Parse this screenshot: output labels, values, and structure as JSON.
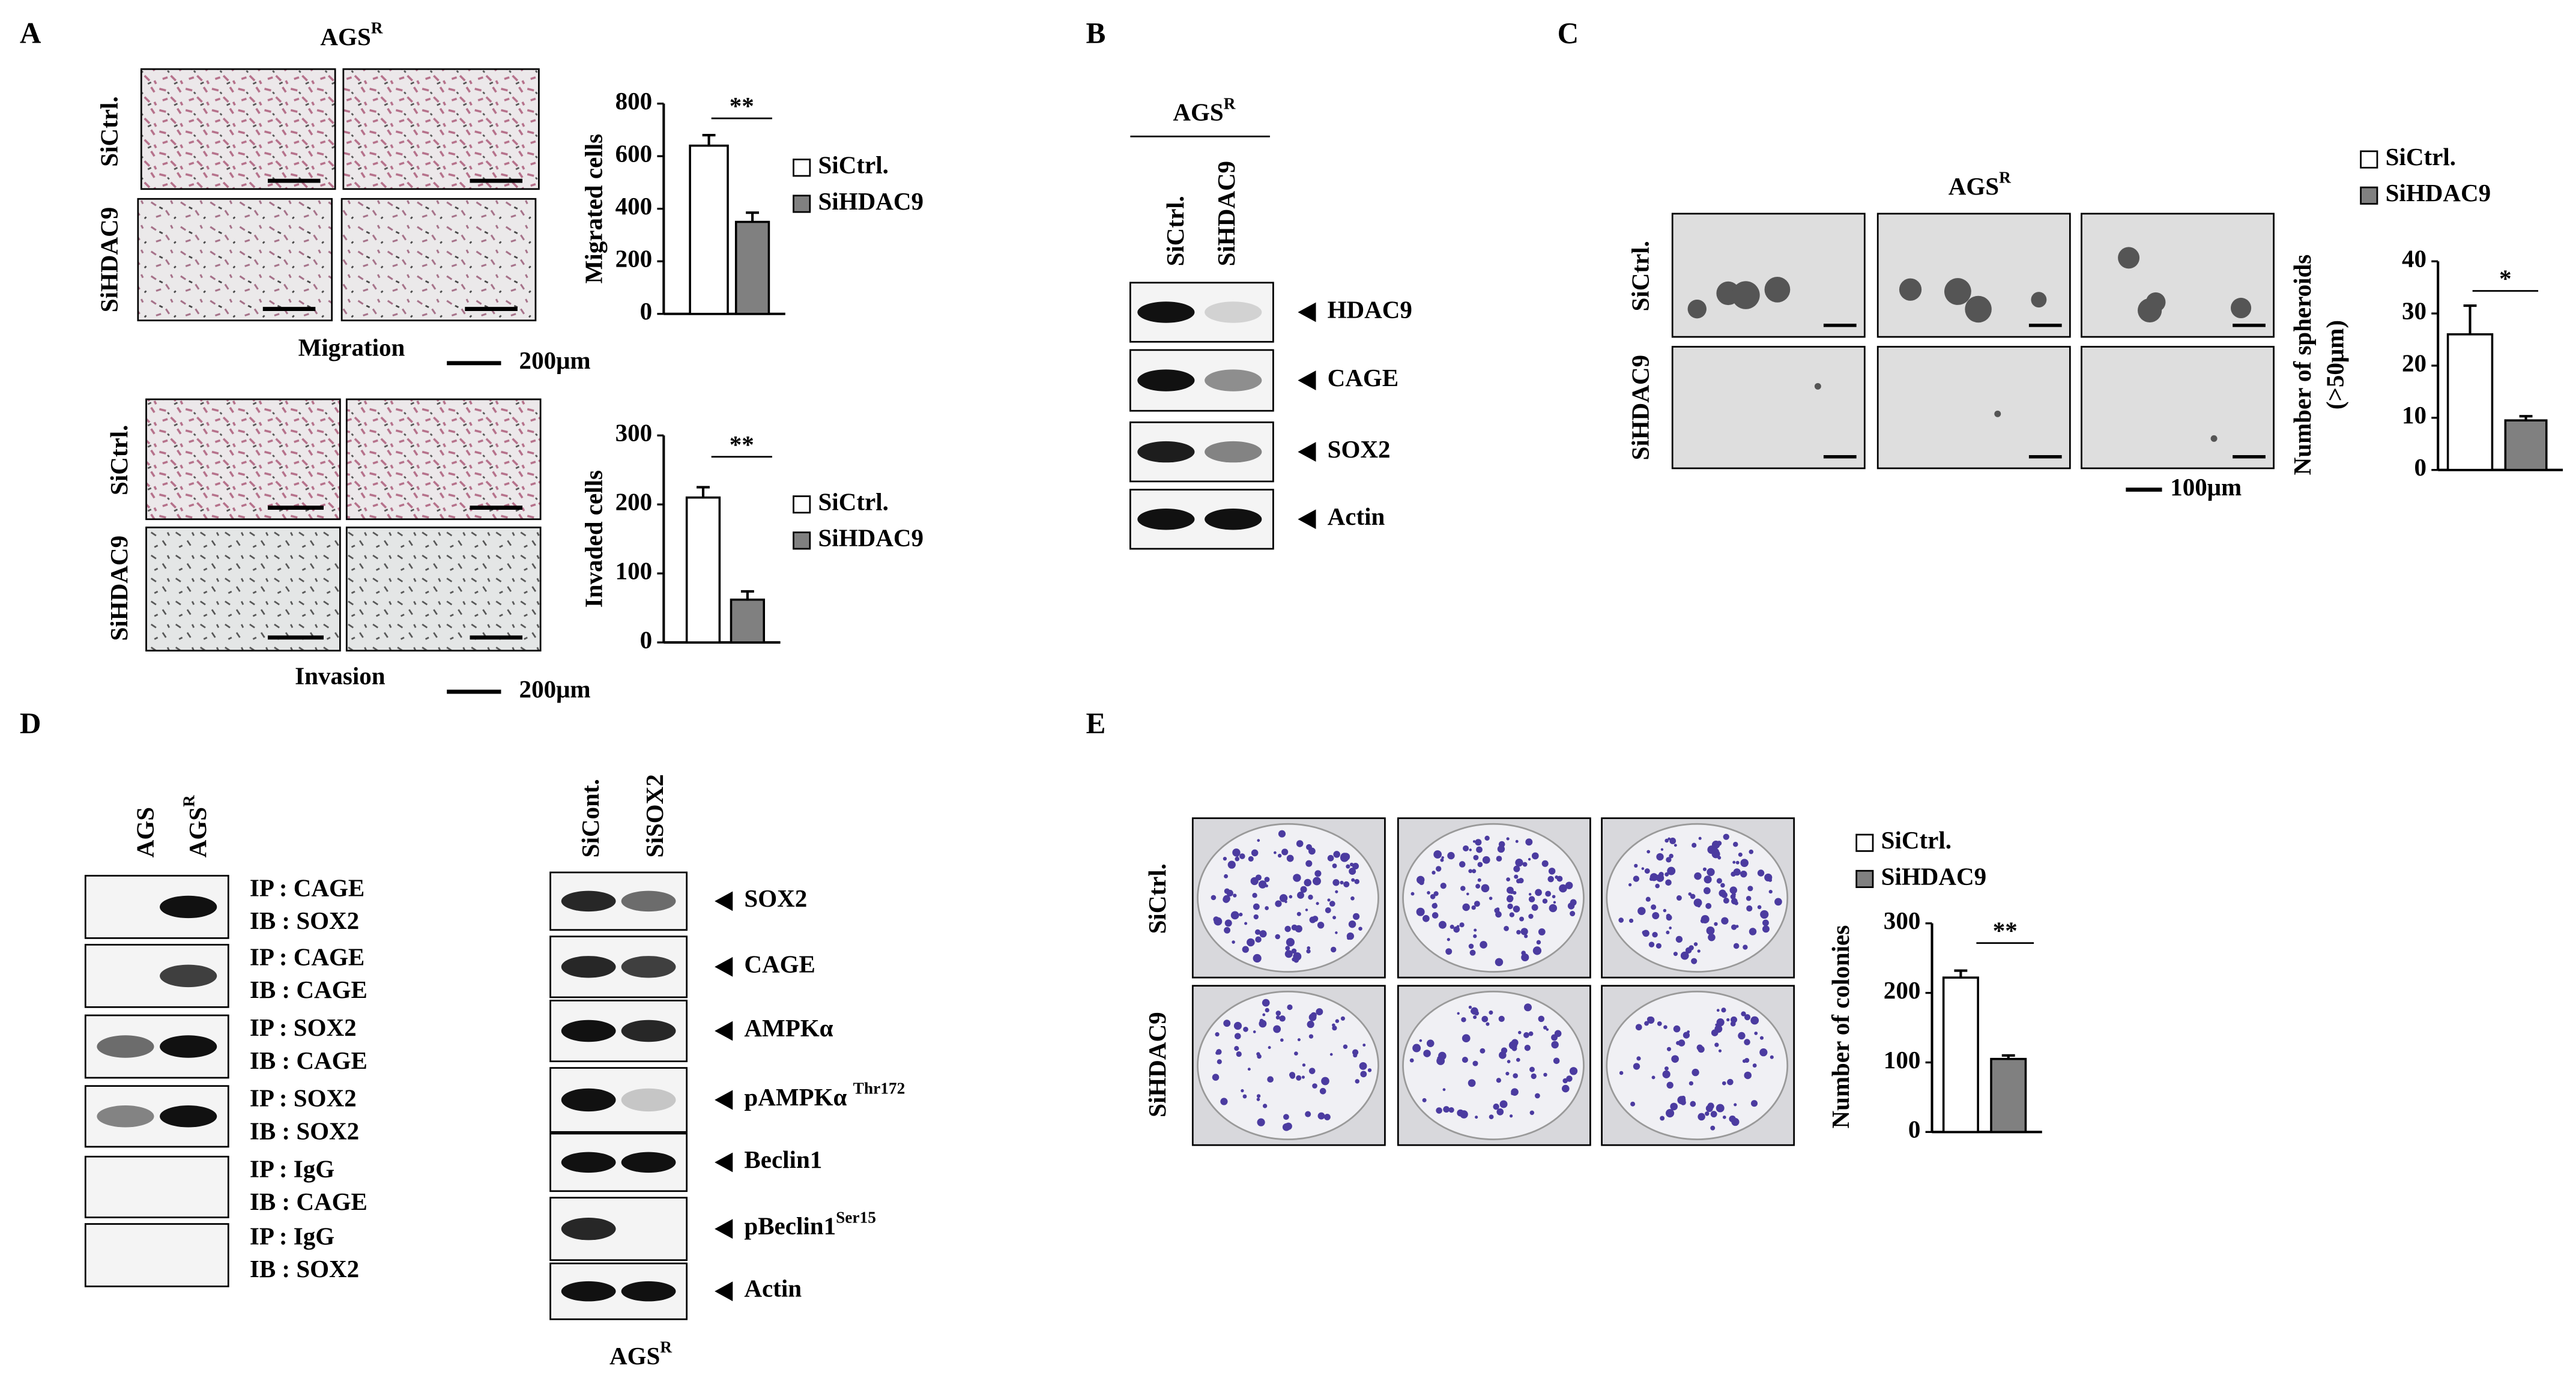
{
  "figure": {
    "panels": {
      "A": {
        "label": "A",
        "title": {
          "text": "AGS",
          "sup": "R"
        },
        "rows": [
          "SiCtrl.",
          "SiHDAC9"
        ],
        "migration_caption": "Migration",
        "invasion_caption": "Invasion",
        "scale_bar": "200μm"
      },
      "B": {
        "label": "B",
        "title": {
          "text": "AGS",
          "sup": "R"
        },
        "columns": [
          "SiCtrl.",
          "SiHDAC9"
        ],
        "blots": [
          "HDAC9",
          "CAGE",
          "SOX2",
          "Actin"
        ]
      },
      "C": {
        "label": "C",
        "title": {
          "text": "AGS",
          "sup": "R"
        },
        "rows": [
          "SiCtrl.",
          "SiHDAC9"
        ],
        "scale_bar": "100μm"
      },
      "D": {
        "label": "D",
        "left_columns": [
          "AGS",
          {
            "text": "AGS",
            "sup": "R"
          }
        ],
        "left_blots": [
          [
            "IP : CAGE",
            "IB : SOX2"
          ],
          [
            "IP : CAGE",
            "IB : CAGE"
          ],
          [
            "IP : SOX2",
            "IB : CAGE"
          ],
          [
            "IP : SOX2",
            "IB : SOX2"
          ],
          [
            "IP : IgG",
            "IB : CAGE"
          ],
          [
            "IP : IgG",
            "IB : SOX2"
          ]
        ],
        "right_columns": [
          "SiCont.",
          "SiSOX2"
        ],
        "right_blots": [
          {
            "text": "SOX2"
          },
          {
            "text": "CAGE"
          },
          {
            "text": "AMPKα"
          },
          {
            "text": "pAMPKα ",
            "sup": "Thr172"
          },
          {
            "text": "Beclin1"
          },
          {
            "text": "pBeclin1",
            "sup": "Ser15"
          },
          {
            "text": "Actin"
          }
        ],
        "footer": {
          "text": "AGS",
          "sup": "R"
        }
      },
      "E": {
        "label": "E",
        "rows": [
          "SiCtrl.",
          "SiHDAC9"
        ]
      }
    }
  },
  "chart_data": [
    {
      "type": "bar",
      "ylabel": [
        "Migrated cells"
      ],
      "categories": [
        null
      ],
      "ylim": [
        0,
        800
      ],
      "yticks": [
        0,
        200,
        400,
        600,
        800
      ],
      "annotation": "**",
      "series": [
        {
          "name": "SiCtrl.",
          "color": "#ffffff",
          "values": [
            640
          ],
          "errors": [
            40
          ]
        },
        {
          "name": "SiHDAC9",
          "color": "#808080",
          "values": [
            350
          ],
          "errors": [
            35
          ]
        }
      ]
    },
    {
      "type": "bar",
      "ylabel": [
        "Invaded cells"
      ],
      "categories": [
        null
      ],
      "ylim": [
        0,
        300
      ],
      "yticks": [
        0,
        100,
        200,
        300
      ],
      "annotation": "**",
      "series": [
        {
          "name": "SiCtrl.",
          "color": "#ffffff",
          "values": [
            210
          ],
          "errors": [
            15
          ]
        },
        {
          "name": "SiHDAC9",
          "color": "#808080",
          "values": [
            62
          ],
          "errors": [
            12
          ]
        }
      ]
    },
    {
      "type": "bar",
      "ylabel": [
        "Number of spheroids",
        "(>50μm)"
      ],
      "categories": [
        null
      ],
      "ylim": [
        0,
        40
      ],
      "yticks": [
        0,
        10,
        20,
        30,
        40
      ],
      "annotation": "*",
      "series": [
        {
          "name": "SiCtrl.",
          "color": "#ffffff",
          "values": [
            26
          ],
          "errors": [
            5.5
          ]
        },
        {
          "name": "SiHDAC9",
          "color": "#808080",
          "values": [
            9.5
          ],
          "errors": [
            0.8
          ]
        }
      ]
    },
    {
      "type": "bar",
      "ylabel": [
        "Number of colonies"
      ],
      "categories": [
        null
      ],
      "ylim": [
        0,
        300
      ],
      "yticks": [
        0,
        100,
        200,
        300
      ],
      "annotation": "**",
      "series": [
        {
          "name": "SiCtrl.",
          "color": "#ffffff",
          "values": [
            222
          ],
          "errors": [
            10
          ]
        },
        {
          "name": "SiHDAC9",
          "color": "#808080",
          "values": [
            105
          ],
          "errors": [
            5
          ]
        }
      ]
    }
  ]
}
